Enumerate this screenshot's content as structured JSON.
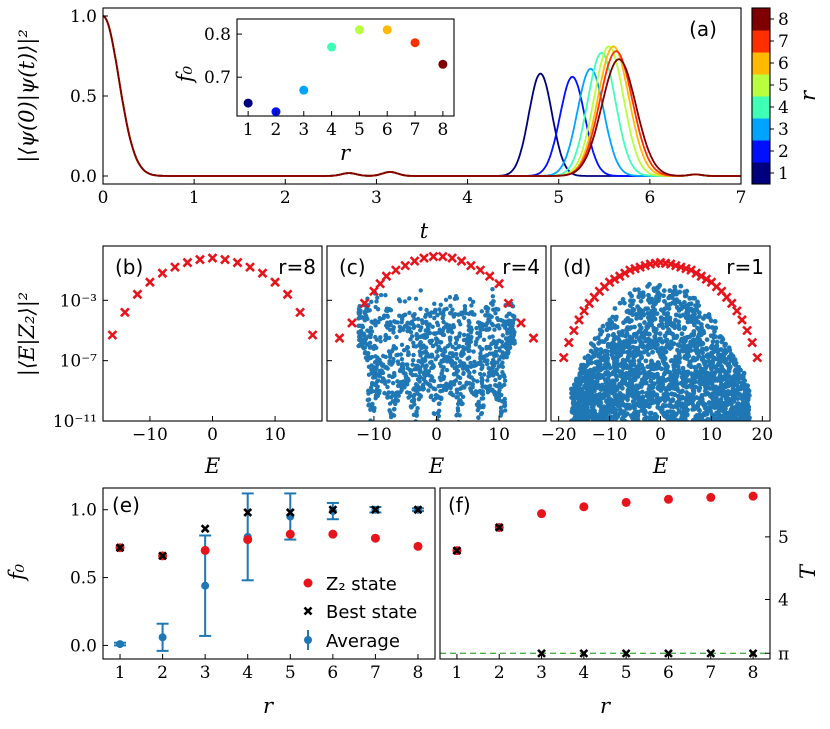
{
  "chart_data": [
    {
      "id": "a",
      "panel_label": "(a)",
      "type": "line",
      "xlabel": "t",
      "ylabel": "|⟨ψ(0)|ψ(t)⟩|²",
      "xlim": [
        0,
        7
      ],
      "ylim": [
        -0.05,
        1.05
      ],
      "xticks": [
        "0",
        "1",
        "2",
        "3",
        "4",
        "5",
        "6",
        "7"
      ],
      "yticks": [
        "0.0",
        "0.5",
        "1.0"
      ],
      "colorbar": {
        "label": "r",
        "ticks": [
          "1",
          "2",
          "3",
          "4",
          "5",
          "6",
          "7",
          "8"
        ],
        "colors": [
          "#00007f",
          "#0010ff",
          "#00a4ff",
          "#3fffb7",
          "#b7ff3f",
          "#ffb900",
          "#ff3000",
          "#7f0000"
        ]
      },
      "series": [
        {
          "name": "r=1",
          "revival_time": 4.8,
          "revival_peak": 0.64
        },
        {
          "name": "r=2",
          "revival_time": 5.15,
          "revival_peak": 0.62
        },
        {
          "name": "r=3",
          "revival_time": 5.35,
          "revival_peak": 0.67
        },
        {
          "name": "r=4",
          "revival_time": 5.47,
          "revival_peak": 0.77
        },
        {
          "name": "r=5",
          "revival_time": 5.55,
          "revival_peak": 0.81
        },
        {
          "name": "r=6",
          "revival_time": 5.6,
          "revival_peak": 0.81
        },
        {
          "name": "r=7",
          "revival_time": 5.63,
          "revival_peak": 0.78
        },
        {
          "name": "r=8",
          "revival_time": 5.66,
          "revival_peak": 0.73
        }
      ],
      "inset": {
        "type": "scatter",
        "xlabel": "r",
        "ylabel": "f₀",
        "xlim": [
          0.6,
          8.4
        ],
        "ylim": [
          0.61,
          0.835
        ],
        "xticks": [
          "1",
          "2",
          "3",
          "4",
          "5",
          "6",
          "7",
          "8"
        ],
        "yticks": [
          "0.7",
          "0.8"
        ],
        "x": [
          1,
          2,
          3,
          4,
          5,
          6,
          7,
          8
        ],
        "y": [
          0.64,
          0.62,
          0.67,
          0.77,
          0.81,
          0.81,
          0.78,
          0.73
        ]
      }
    },
    {
      "id": "b",
      "panel_label": "(b)",
      "annotation": "r=8",
      "type": "scatter",
      "xlabel": "E",
      "ylabel": "|⟨E|Z₂⟩|²",
      "yscale": "log",
      "xlim": [
        -17.5,
        17.5
      ],
      "ylim_log10": [
        -11,
        0.6
      ],
      "xticks": [
        "−10",
        "0",
        "10"
      ],
      "yticks": [
        "10⁻³",
        "10⁻⁷",
        "10⁻¹¹"
      ],
      "crosses": {
        "E": [
          -16,
          -14,
          -12,
          -10,
          -8,
          -6,
          -4,
          -2,
          0,
          2,
          4,
          6,
          8,
          10,
          12,
          14,
          16
        ],
        "log10_overlap": [
          -5.3,
          -3.8,
          -2.6,
          -1.8,
          -1.2,
          -0.8,
          -0.5,
          -0.3,
          -0.2,
          -0.3,
          -0.5,
          -0.8,
          -1.2,
          -1.8,
          -2.6,
          -3.8,
          -5.3
        ]
      }
    },
    {
      "id": "c",
      "panel_label": "(c)",
      "annotation": "r=4",
      "type": "scatter",
      "xlabel": "E",
      "xlim": [
        -17.5,
        17.5
      ],
      "ylim_log10": [
        -11,
        0.6
      ],
      "xticks": [
        "−10",
        "0",
        "10"
      ],
      "crosses": {
        "E": [
          -15.5,
          -13.5,
          -11.5,
          -10,
          -9,
          -8,
          -6.5,
          -5,
          -3.5,
          -2,
          -0.5,
          1,
          2.5,
          4,
          5.5,
          7,
          8.5,
          10,
          11.5,
          13.5,
          15.5
        ],
        "log10_overlap": [
          -5.5,
          -4.5,
          -3.2,
          -2.4,
          -1.9,
          -1.4,
          -1.0,
          -0.7,
          -0.4,
          -0.2,
          -0.1,
          -0.1,
          -0.2,
          -0.4,
          -0.7,
          -1.0,
          -1.4,
          -1.9,
          -3.2,
          -4.5,
          -5.5
        ]
      },
      "dots_description": "bulk eigenstate overlaps"
    },
    {
      "id": "d",
      "panel_label": "(d)",
      "annotation": "r=1",
      "type": "scatter",
      "xlabel": "E",
      "xlim": [
        -21.5,
        21.5
      ],
      "ylim_log10": [
        -11,
        0.6
      ],
      "xticks": [
        "−20",
        "−10",
        "0",
        "10",
        "20"
      ],
      "crosses": {
        "E": [
          -19,
          -18,
          -17,
          -16,
          -15,
          -14,
          -13,
          -12,
          -11,
          -10,
          -9,
          -8,
          -7,
          -6,
          -5,
          -4,
          -3,
          -2,
          -1,
          0,
          1,
          2,
          3,
          4,
          5,
          6,
          7,
          8,
          9,
          10,
          11,
          12,
          13,
          14,
          15,
          16,
          17,
          18,
          19
        ],
        "log10_overlap": [
          -6.8,
          -5.8,
          -5.0,
          -4.3,
          -3.7,
          -3.2,
          -2.8,
          -2.4,
          -2.1,
          -1.8,
          -1.6,
          -1.4,
          -1.2,
          -1.0,
          -0.9,
          -0.8,
          -0.7,
          -0.6,
          -0.55,
          -0.5,
          -0.55,
          -0.6,
          -0.7,
          -0.8,
          -0.9,
          -1.0,
          -1.2,
          -1.4,
          -1.6,
          -1.8,
          -2.1,
          -2.4,
          -2.8,
          -3.2,
          -3.7,
          -4.3,
          -5.0,
          -5.8,
          -6.8
        ]
      },
      "dots_description": "bulk eigenstate overlaps"
    },
    {
      "id": "e",
      "panel_label": "(e)",
      "type": "scatter",
      "xlabel": "r",
      "ylabel": "f₀",
      "xlim": [
        0.6,
        8.4
      ],
      "ylim": [
        -0.1,
        1.16
      ],
      "xticks": [
        "1",
        "2",
        "3",
        "4",
        "5",
        "6",
        "7",
        "8"
      ],
      "yticks": [
        "0.0",
        "0.5",
        "1.0"
      ],
      "legend": {
        "placement": "center-right",
        "entries": [
          "Z₂ state",
          "Best state",
          "Average"
        ]
      },
      "series": [
        {
          "name": "Z₂ state",
          "x": [
            1,
            2,
            3,
            4,
            5,
            6,
            7,
            8
          ],
          "y": [
            0.72,
            0.66,
            0.7,
            0.78,
            0.82,
            0.82,
            0.79,
            0.73
          ]
        },
        {
          "name": "Best state",
          "x": [
            1,
            2,
            3,
            4,
            5,
            6,
            7,
            8
          ],
          "y": [
            0.72,
            0.66,
            0.86,
            0.98,
            0.98,
            1.0,
            1.0,
            1.0
          ]
        },
        {
          "name": "Average",
          "x": [
            1,
            2,
            3,
            4,
            5,
            6,
            7,
            8
          ],
          "y": [
            0.01,
            0.06,
            0.44,
            0.8,
            0.95,
            0.99,
            1.0,
            1.0
          ],
          "err": [
            0.01,
            0.1,
            0.37,
            0.32,
            0.17,
            0.06,
            0.02,
            0.01
          ]
        }
      ]
    },
    {
      "id": "f",
      "panel_label": "(f)",
      "type": "scatter",
      "xlabel": "r",
      "ylabel": "T",
      "ylabel_side": "right",
      "xlim": [
        0.6,
        8.4
      ],
      "ylim": [
        3.05,
        5.78
      ],
      "xticks": [
        "1",
        "2",
        "3",
        "4",
        "5",
        "6",
        "7",
        "8"
      ],
      "yticks": [
        "π",
        "4",
        "5"
      ],
      "hline": {
        "value": 3.14159,
        "style": "dashed",
        "color": "#4daf4a"
      },
      "series": [
        {
          "name": "Z₂ state",
          "x": [
            1,
            2,
            3,
            4,
            5,
            6,
            7,
            8
          ],
          "y": [
            4.78,
            5.15,
            5.37,
            5.48,
            5.55,
            5.6,
            5.63,
            5.65
          ]
        },
        {
          "name": "Best state",
          "x": [
            1,
            2,
            3,
            4,
            5,
            6,
            7,
            8
          ],
          "y": [
            4.78,
            5.15,
            3.14,
            3.14,
            3.14,
            3.14,
            3.14,
            3.14
          ]
        }
      ]
    }
  ]
}
